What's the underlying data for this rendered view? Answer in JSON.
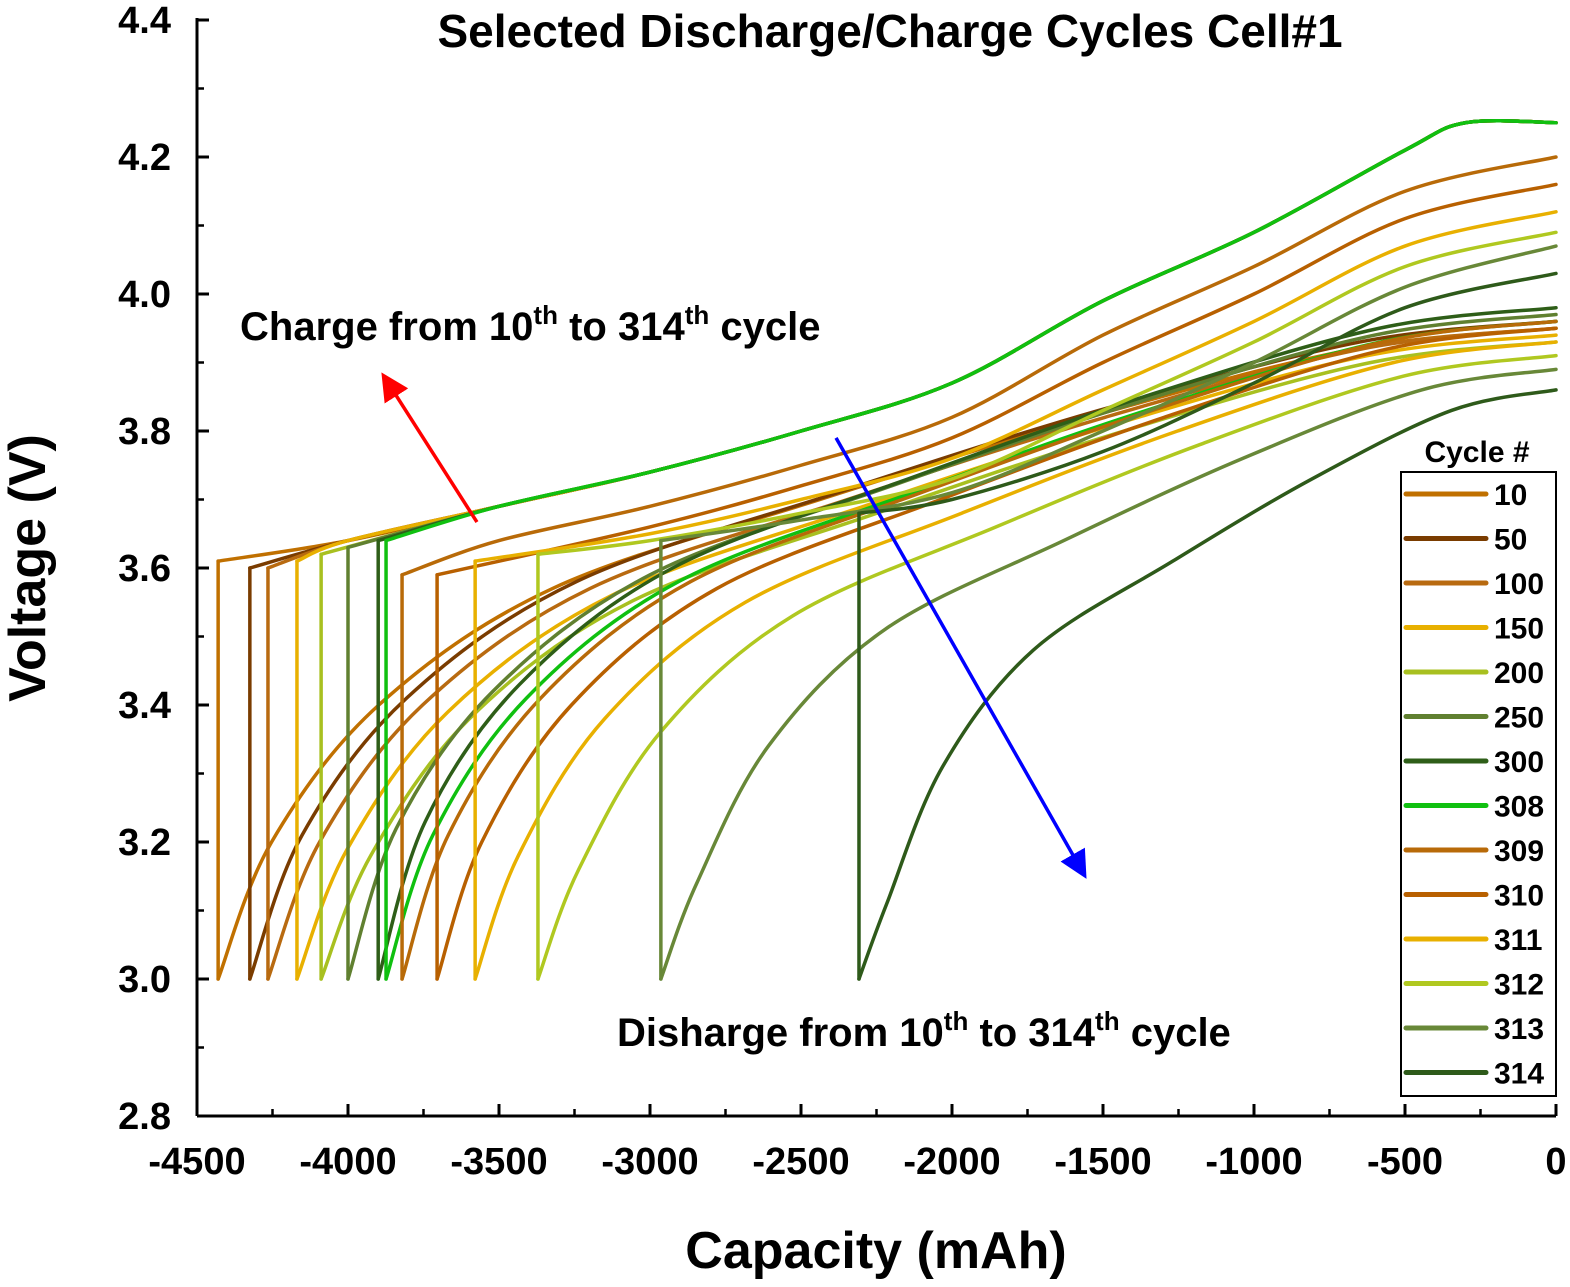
{
  "chart_data": {
    "type": "line",
    "title": "Selected Discharge/Charge Cycles Cell#1",
    "xlabel": "Capacity (mAh)",
    "ylabel": "Voltage (V)",
    "xlim": [
      -4500,
      0
    ],
    "ylim": [
      2.8,
      4.4
    ],
    "xticks": [
      "-4500",
      "-4000",
      "-3500",
      "-3000",
      "-2500",
      "-2000",
      "-1500",
      "-1000",
      "-500",
      "0"
    ],
    "yticks": [
      "2.8",
      "3.0",
      "3.2",
      "3.4",
      "3.6",
      "3.8",
      "4.0",
      "4.2",
      "4.4"
    ],
    "grid": false,
    "legend": {
      "title": "Cycle #",
      "placement": "right"
    },
    "annotations": {
      "charge": {
        "pre": "Charge from 10",
        "sup1": "th",
        "mid": " to 314",
        "sup2": "th",
        "post": " cycle",
        "arrow_color": "#ff0000",
        "arrow_from": [
          -3573,
          3.667
        ],
        "arrow_to": [
          -3877,
          3.877
        ]
      },
      "discharge": {
        "pre": "Disharge from 10",
        "sup1": "th",
        "mid": " to 314",
        "sup2": "th",
        "post": " cycle",
        "arrow_color": "#0000ff",
        "arrow_from": [
          -2384,
          3.79
        ],
        "arrow_to": [
          -1566,
          3.155
        ]
      }
    },
    "series": [
      {
        "name": "10",
        "color": "#c07000",
        "discharge": [
          [
            0,
            3.95
          ],
          [
            -665,
            3.92
          ],
          [
            -1550,
            3.82
          ],
          [
            -2437,
            3.7
          ],
          [
            -3323,
            3.57
          ],
          [
            -3898,
            3.4
          ],
          [
            -4253,
            3.2
          ],
          [
            -4430,
            3.0
          ]
        ],
        "charge": [
          [
            -4430,
            3.61
          ],
          [
            -4000,
            3.64
          ],
          [
            -3500,
            3.69
          ],
          [
            -3000,
            3.74
          ],
          [
            -2500,
            3.8
          ],
          [
            -2000,
            3.87
          ],
          [
            -1500,
            3.99
          ],
          [
            -1000,
            4.09
          ],
          [
            -500,
            4.21
          ],
          [
            -300,
            4.25
          ],
          [
            0,
            4.25
          ]
        ]
      },
      {
        "name": "50",
        "color": "#7a3c00",
        "discharge": [
          [
            0,
            3.96
          ],
          [
            -649,
            3.93
          ],
          [
            -1514,
            3.83
          ],
          [
            -2379,
            3.71
          ],
          [
            -3244,
            3.58
          ],
          [
            -3806,
            3.41
          ],
          [
            -4152,
            3.21
          ],
          [
            -4325,
            3.0
          ]
        ],
        "charge": [
          [
            -4325,
            3.6
          ],
          [
            -4000,
            3.64
          ],
          [
            -3500,
            3.69
          ],
          [
            -3000,
            3.74
          ],
          [
            -2500,
            3.8
          ],
          [
            -2000,
            3.87
          ],
          [
            -1500,
            3.99
          ],
          [
            -1000,
            4.09
          ],
          [
            -500,
            4.21
          ],
          [
            -300,
            4.25
          ],
          [
            0,
            4.25
          ]
        ]
      },
      {
        "name": "100",
        "color": "#b86a10",
        "discharge": [
          [
            0,
            3.95
          ],
          [
            -640,
            3.92
          ],
          [
            -1493,
            3.82
          ],
          [
            -2346,
            3.7
          ],
          [
            -3199,
            3.57
          ],
          [
            -3753,
            3.4
          ],
          [
            -4094,
            3.2
          ],
          [
            -4265,
            3.0
          ]
        ],
        "charge": [
          [
            -4265,
            3.6
          ],
          [
            -4000,
            3.64
          ],
          [
            -3500,
            3.69
          ],
          [
            -3000,
            3.74
          ],
          [
            -2500,
            3.8
          ],
          [
            -2000,
            3.87
          ],
          [
            -1500,
            3.99
          ],
          [
            -1000,
            4.09
          ],
          [
            -500,
            4.21
          ],
          [
            -300,
            4.25
          ],
          [
            0,
            4.25
          ]
        ]
      },
      {
        "name": "150",
        "color": "#e8b000",
        "discharge": [
          [
            0,
            3.94
          ],
          [
            -625,
            3.91
          ],
          [
            -1459,
            3.81
          ],
          [
            -2293,
            3.69
          ],
          [
            -3127,
            3.56
          ],
          [
            -3669,
            3.39
          ],
          [
            -4002,
            3.19
          ],
          [
            -4169,
            3.0
          ]
        ],
        "charge": [
          [
            -4169,
            3.61
          ],
          [
            -4000,
            3.64
          ],
          [
            -3500,
            3.69
          ],
          [
            -3000,
            3.74
          ],
          [
            -2500,
            3.8
          ],
          [
            -2000,
            3.87
          ],
          [
            -1500,
            3.99
          ],
          [
            -1000,
            4.09
          ],
          [
            -500,
            4.21
          ],
          [
            -300,
            4.25
          ],
          [
            0,
            4.25
          ]
        ]
      },
      {
        "name": "200",
        "color": "#a8c020",
        "discharge": [
          [
            0,
            3.93
          ],
          [
            -613,
            3.9
          ],
          [
            -1431,
            3.8
          ],
          [
            -2249,
            3.68
          ],
          [
            -3067,
            3.55
          ],
          [
            -3598,
            3.38
          ],
          [
            -3925,
            3.18
          ],
          [
            -4089,
            3.0
          ]
        ],
        "charge": [
          [
            -4089,
            3.62
          ],
          [
            -3500,
            3.69
          ],
          [
            -3000,
            3.74
          ],
          [
            -2500,
            3.8
          ],
          [
            -2000,
            3.87
          ],
          [
            -1500,
            3.99
          ],
          [
            -1000,
            4.09
          ],
          [
            -500,
            4.21
          ],
          [
            -300,
            4.25
          ],
          [
            0,
            4.25
          ]
        ]
      },
      {
        "name": "250",
        "color": "#608030",
        "discharge": [
          [
            0,
            3.97
          ],
          [
            -600,
            3.94
          ],
          [
            -1400,
            3.84
          ],
          [
            -2200,
            3.72
          ],
          [
            -3000,
            3.59
          ],
          [
            -3520,
            3.42
          ],
          [
            -3840,
            3.22
          ],
          [
            -4000,
            3.0
          ]
        ],
        "charge": [
          [
            -4000,
            3.63
          ],
          [
            -3500,
            3.69
          ],
          [
            -3000,
            3.74
          ],
          [
            -2500,
            3.8
          ],
          [
            -2000,
            3.87
          ],
          [
            -1500,
            3.99
          ],
          [
            -1000,
            4.09
          ],
          [
            -500,
            4.21
          ],
          [
            -300,
            4.25
          ],
          [
            0,
            4.25
          ]
        ]
      },
      {
        "name": "300",
        "color": "#2e5e18",
        "discharge": [
          [
            0,
            3.98
          ],
          [
            -585,
            3.95
          ],
          [
            -1365,
            3.85
          ],
          [
            -2145,
            3.73
          ],
          [
            -2925,
            3.6
          ],
          [
            -3432,
            3.43
          ],
          [
            -3744,
            3.23
          ],
          [
            -3900,
            3.0
          ]
        ],
        "charge": [
          [
            -3900,
            3.64
          ],
          [
            -3500,
            3.69
          ],
          [
            -3000,
            3.74
          ],
          [
            -2500,
            3.8
          ],
          [
            -2000,
            3.87
          ],
          [
            -1500,
            3.99
          ],
          [
            -1000,
            4.09
          ],
          [
            -500,
            4.21
          ],
          [
            -300,
            4.25
          ],
          [
            0,
            4.25
          ]
        ]
      },
      {
        "name": "308",
        "color": "#10c010",
        "discharge": [
          [
            0,
            3.96
          ],
          [
            -581,
            3.93
          ],
          [
            -1356,
            3.83
          ],
          [
            -2131,
            3.71
          ],
          [
            -2906,
            3.58
          ],
          [
            -3409,
            3.41
          ],
          [
            -3719,
            3.21
          ],
          [
            -3874,
            3.0
          ]
        ],
        "charge": [
          [
            -3874,
            3.64
          ],
          [
            -3500,
            3.69
          ],
          [
            -3000,
            3.74
          ],
          [
            -2500,
            3.8
          ],
          [
            -2000,
            3.87
          ],
          [
            -1500,
            3.99
          ],
          [
            -1000,
            4.09
          ],
          [
            -500,
            4.21
          ],
          [
            -300,
            4.25
          ],
          [
            0,
            4.25
          ]
        ]
      },
      {
        "name": "309",
        "color": "#b86a08",
        "discharge": [
          [
            0,
            3.96
          ],
          [
            -573,
            3.93
          ],
          [
            -1337,
            3.83
          ],
          [
            -2102,
            3.71
          ],
          [
            -2866,
            3.58
          ],
          [
            -3362,
            3.41
          ],
          [
            -3668,
            3.21
          ],
          [
            -3821,
            3.0
          ]
        ],
        "charge": [
          [
            -3821,
            3.59
          ],
          [
            -3500,
            3.64
          ],
          [
            -3000,
            3.69
          ],
          [
            -2500,
            3.75
          ],
          [
            -2000,
            3.82
          ],
          [
            -1500,
            3.94
          ],
          [
            -1000,
            4.04
          ],
          [
            -500,
            4.15
          ],
          [
            0,
            4.2
          ]
        ]
      },
      {
        "name": "310",
        "color": "#b86000",
        "discharge": [
          [
            0,
            3.95
          ],
          [
            -556,
            3.92
          ],
          [
            -1297,
            3.82
          ],
          [
            -2038,
            3.7
          ],
          [
            -2779,
            3.57
          ],
          [
            -3260,
            3.4
          ],
          [
            -3557,
            3.2
          ],
          [
            -3705,
            3.0
          ]
        ],
        "charge": [
          [
            -3705,
            3.59
          ],
          [
            -3000,
            3.66
          ],
          [
            -2500,
            3.72
          ],
          [
            -2000,
            3.79
          ],
          [
            -1500,
            3.9
          ],
          [
            -1000,
            4.0
          ],
          [
            -500,
            4.11
          ],
          [
            0,
            4.16
          ]
        ]
      },
      {
        "name": "311",
        "color": "#e8b000",
        "discharge": [
          [
            0,
            3.93
          ],
          [
            -537,
            3.9
          ],
          [
            -1253,
            3.8
          ],
          [
            -1968,
            3.68
          ],
          [
            -2684,
            3.55
          ],
          [
            -3150,
            3.38
          ],
          [
            -3436,
            3.18
          ],
          [
            -3579,
            3.0
          ]
        ],
        "charge": [
          [
            -3579,
            3.61
          ],
          [
            -3000,
            3.65
          ],
          [
            -2500,
            3.7
          ],
          [
            -2000,
            3.76
          ],
          [
            -1500,
            3.86
          ],
          [
            -1000,
            3.96
          ],
          [
            -500,
            4.07
          ],
          [
            0,
            4.12
          ]
        ]
      },
      {
        "name": "312",
        "color": "#b0c820",
        "discharge": [
          [
            0,
            3.91
          ],
          [
            -506,
            3.88
          ],
          [
            -1180,
            3.78
          ],
          [
            -1854,
            3.66
          ],
          [
            -2528,
            3.53
          ],
          [
            -2966,
            3.36
          ],
          [
            -3236,
            3.16
          ],
          [
            -3371,
            3.0
          ]
        ],
        "charge": [
          [
            -3371,
            3.62
          ],
          [
            -3000,
            3.64
          ],
          [
            -2500,
            3.68
          ],
          [
            -2000,
            3.73
          ],
          [
            -1500,
            3.83
          ],
          [
            -1000,
            3.93
          ],
          [
            -500,
            4.04
          ],
          [
            0,
            4.09
          ]
        ]
      },
      {
        "name": "313",
        "color": "#688838",
        "discharge": [
          [
            0,
            3.89
          ],
          [
            -445,
            3.86
          ],
          [
            -1037,
            3.76
          ],
          [
            -1630,
            3.64
          ],
          [
            -2223,
            3.51
          ],
          [
            -2608,
            3.34
          ],
          [
            -2845,
            3.14
          ],
          [
            -2964,
            3.0
          ]
        ],
        "charge": [
          [
            -2964,
            3.64
          ],
          [
            -2500,
            3.67
          ],
          [
            -2000,
            3.71
          ],
          [
            -1500,
            3.8
          ],
          [
            -1000,
            3.9
          ],
          [
            -500,
            4.01
          ],
          [
            0,
            4.07
          ]
        ]
      },
      {
        "name": "314",
        "color": "#2e5a1a",
        "discharge": [
          [
            0,
            3.86
          ],
          [
            -346,
            3.83
          ],
          [
            -808,
            3.73
          ],
          [
            -1269,
            3.61
          ],
          [
            -1731,
            3.48
          ],
          [
            -2031,
            3.31
          ],
          [
            -2216,
            3.11
          ],
          [
            -2308,
            3.0
          ]
        ],
        "charge": [
          [
            -2308,
            3.68
          ],
          [
            -2000,
            3.7
          ],
          [
            -1500,
            3.77
          ],
          [
            -1000,
            3.87
          ],
          [
            -500,
            3.98
          ],
          [
            0,
            4.03
          ]
        ]
      }
    ]
  }
}
